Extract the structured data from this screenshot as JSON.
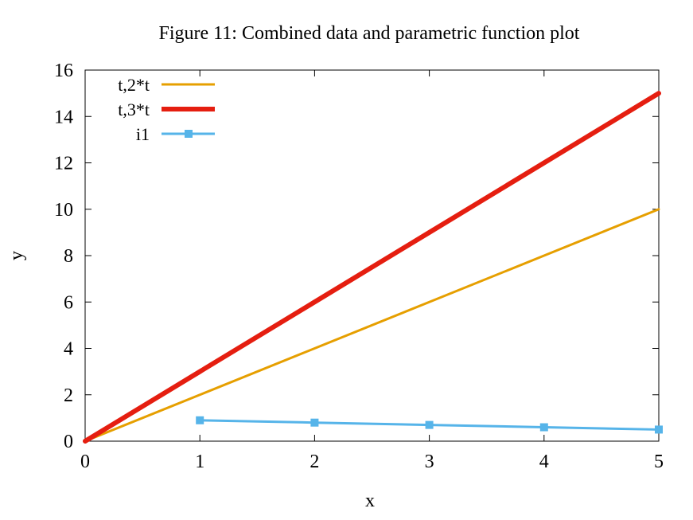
{
  "chart_data": {
    "type": "line",
    "title": "Figure 11: Combined data and parametric function plot",
    "xlabel": "x",
    "ylabel": "y",
    "xlim": [
      0,
      5
    ],
    "ylim": [
      0,
      16
    ],
    "xticks": [
      0,
      1,
      2,
      3,
      4,
      5
    ],
    "yticks": [
      0,
      2,
      4,
      6,
      8,
      10,
      12,
      14,
      16
    ],
    "grid": false,
    "legend_position": "top-left",
    "series": [
      {
        "name": "t,2*t",
        "color": "#e69f00",
        "marker": "none",
        "x": [
          0,
          1,
          2,
          3,
          4,
          5
        ],
        "y": [
          0,
          2,
          4,
          6,
          8,
          10
        ]
      },
      {
        "name": "t,3*t",
        "color": "#e51e10",
        "marker": "none",
        "x": [
          0,
          1,
          2,
          3,
          4,
          5
        ],
        "y": [
          0,
          3,
          6,
          9,
          12,
          15
        ]
      },
      {
        "name": "i1",
        "color": "#56b4e9",
        "marker": "square",
        "x": [
          1,
          2,
          3,
          4,
          5
        ],
        "y": [
          0.9,
          0.8,
          0.7,
          0.6,
          0.5
        ]
      }
    ]
  }
}
